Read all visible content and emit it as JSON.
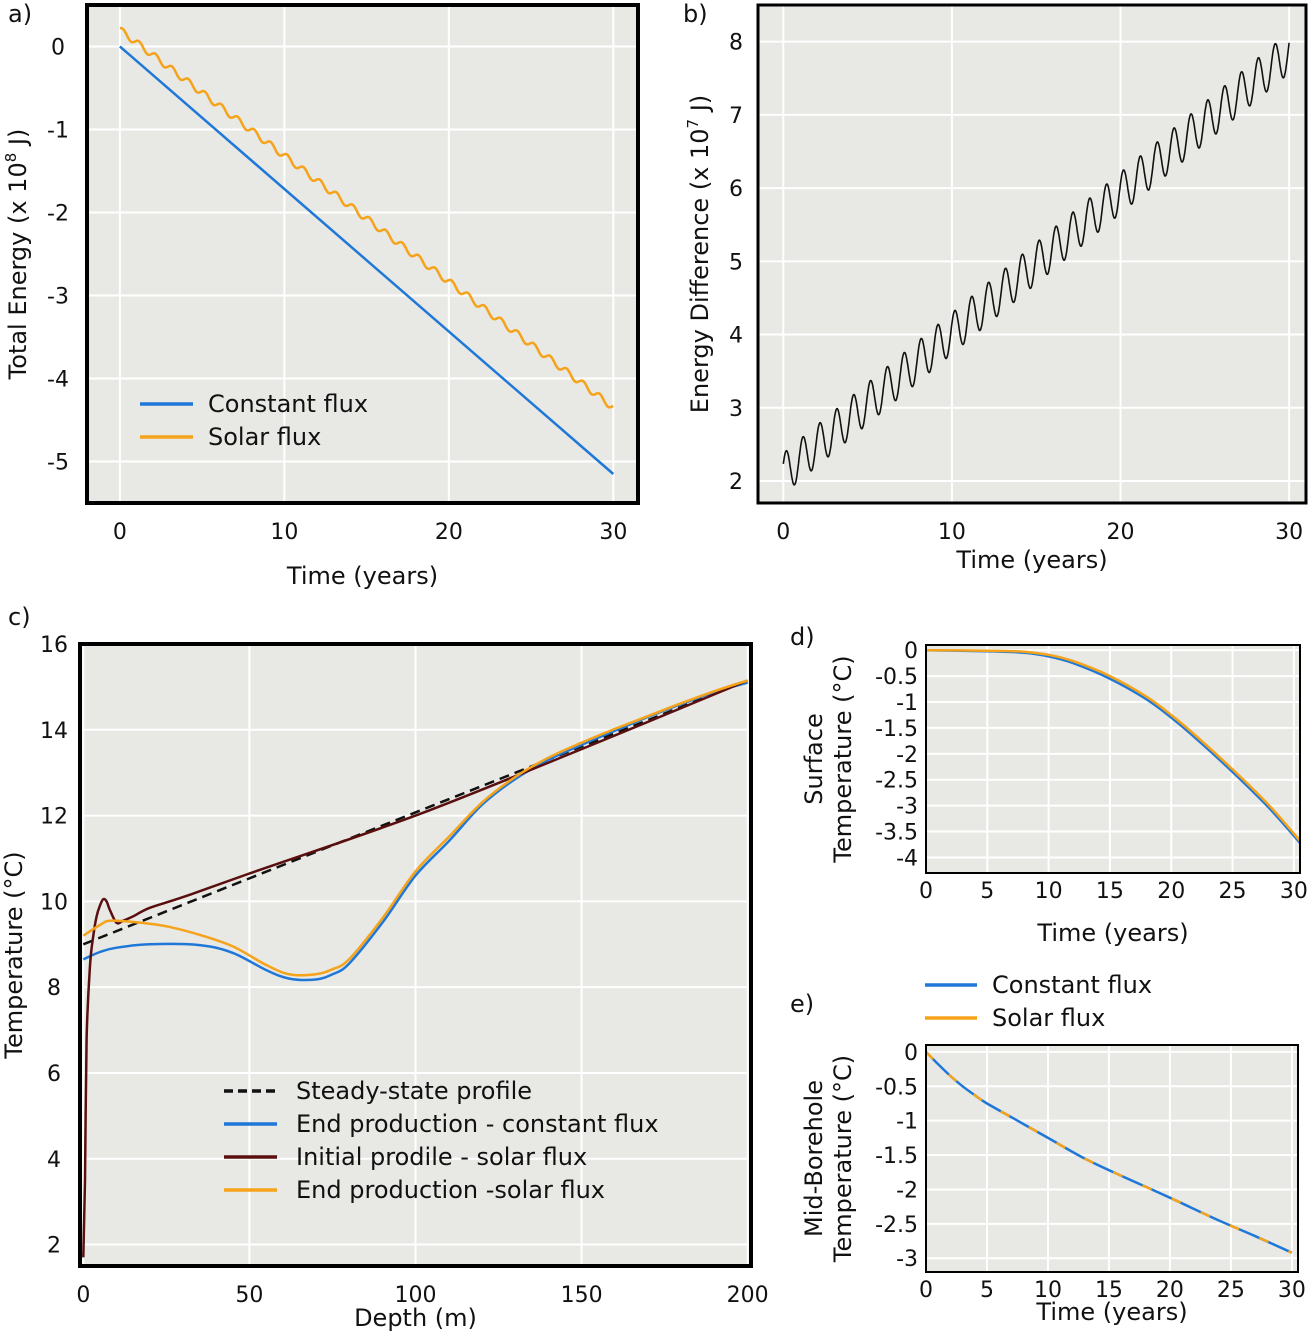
{
  "chart_data": [
    {
      "panel": "a)",
      "type": "line",
      "xlabel": "Time (years)",
      "ylabel_parts": [
        "Total Energy (x 10",
        "8",
        " J)"
      ],
      "xlim": [
        -2,
        31.5
      ],
      "ylim": [
        -5.5,
        0.5
      ],
      "xticks": [
        "0",
        "10",
        "20",
        "30"
      ],
      "yticks": [
        "0",
        "-1",
        "-2",
        "-3",
        "-4",
        "-5"
      ],
      "grid": true,
      "legend_position": "bottom-left",
      "series": [
        {
          "name": "Constant flux",
          "color": "#1f78d8",
          "x": [
            0,
            30
          ],
          "y": [
            0,
            -5.15
          ]
        },
        {
          "name": "Solar flux",
          "color": "#f5a31a",
          "x_start": 0,
          "x_end": 30,
          "y_start": 0.2,
          "y_end": -4.35,
          "oscillation_amplitude": 0.04,
          "oscillation_period_years": 1
        }
      ]
    },
    {
      "panel": "b)",
      "type": "line",
      "xlabel": "Time (years)",
      "ylabel_parts": [
        "Energy Difference (x 10",
        "7",
        " J)"
      ],
      "xlim": [
        -1.5,
        31
      ],
      "ylim": [
        1.7,
        8.5
      ],
      "xticks": [
        "0",
        "10",
        "20",
        "30"
      ],
      "yticks": [
        "2",
        "3",
        "4",
        "5",
        "6",
        "7",
        "8"
      ],
      "grid": true,
      "series": [
        {
          "name": "",
          "color": "#111111",
          "x_start": 0,
          "x_end": 30,
          "y_start": 2.1,
          "y_end": 7.85,
          "oscillation_amplitude": 0.28,
          "oscillation_period_years": 1
        }
      ]
    },
    {
      "panel": "c)",
      "type": "line",
      "xlabel": "Depth (m)",
      "ylabel": "Temperature (°C)",
      "xlim": [
        -1,
        201
      ],
      "ylim": [
        1.5,
        16
      ],
      "xticks": [
        "0",
        "50",
        "100",
        "150",
        "200"
      ],
      "yticks": [
        "2",
        "4",
        "6",
        "8",
        "10",
        "12",
        "14",
        "16"
      ],
      "grid": true,
      "legend_position": "bottom-center",
      "series": [
        {
          "name": "Steady-state profile",
          "color": "#111111",
          "dashed": true,
          "x": [
            0,
            200
          ],
          "y": [
            9.0,
            15.15
          ]
        },
        {
          "name": "End production - constant flux",
          "color": "#1f78d8",
          "x": [
            0,
            5,
            10,
            20,
            35,
            45,
            55,
            62,
            70,
            75,
            80,
            90,
            100,
            110,
            120,
            130,
            140,
            150,
            160,
            170,
            180,
            190,
            200
          ],
          "y": [
            8.65,
            8.82,
            8.92,
            9.0,
            8.98,
            8.8,
            8.4,
            8.2,
            8.18,
            8.3,
            8.55,
            9.5,
            10.6,
            11.4,
            12.25,
            12.85,
            13.3,
            13.65,
            13.98,
            14.3,
            14.6,
            14.88,
            15.1
          ]
        },
        {
          "name": "Initial prodile - solar flux",
          "color": "#5a0f0f",
          "x": [
            0,
            0.5,
            1,
            2,
            3,
            4,
            5,
            6,
            7,
            8,
            10,
            12,
            15,
            20,
            30,
            50,
            100,
            150,
            200
          ],
          "y": [
            1.7,
            3.5,
            6.8,
            8.5,
            9.2,
            9.65,
            9.9,
            10.05,
            10.0,
            9.8,
            9.5,
            9.55,
            9.65,
            9.85,
            10.1,
            10.65,
            12.0,
            13.55,
            15.15
          ]
        },
        {
          "name": "End production -solar flux",
          "color": "#f5a31a",
          "x": [
            0,
            5,
            8,
            15,
            25,
            35,
            45,
            55,
            62,
            70,
            75,
            80,
            90,
            100,
            110,
            120,
            130,
            140,
            150,
            160,
            170,
            180,
            190,
            200
          ],
          "y": [
            9.2,
            9.45,
            9.55,
            9.52,
            9.42,
            9.22,
            8.95,
            8.52,
            8.3,
            8.3,
            8.42,
            8.65,
            9.6,
            10.7,
            11.5,
            12.3,
            12.9,
            13.35,
            13.7,
            14.02,
            14.32,
            14.62,
            14.9,
            15.15
          ]
        }
      ]
    },
    {
      "panel": "d)",
      "type": "line",
      "xlabel": "Time (years)",
      "ylabel_lines": [
        "Surface",
        "Temperature (°C)"
      ],
      "xlim": [
        0,
        30.5
      ],
      "ylim": [
        -4.3,
        0.1
      ],
      "xticks": [
        "0",
        "5",
        "10",
        "15",
        "20",
        "25",
        "30"
      ],
      "yticks": [
        "0",
        "-0.5",
        "-1",
        "-1.5",
        "-2",
        "-2.5",
        "-3",
        "-3.5",
        "-4"
      ],
      "grid": true,
      "series": [
        {
          "name": "Constant flux",
          "color": "#1f78d8",
          "x": [
            0,
            5,
            8,
            10,
            12,
            15,
            18,
            20,
            22,
            25,
            28,
            30.5
          ],
          "y": [
            0,
            -0.02,
            -0.05,
            -0.12,
            -0.25,
            -0.55,
            -0.95,
            -1.3,
            -1.7,
            -2.35,
            -3.05,
            -3.72
          ]
        },
        {
          "name": "Solar flux",
          "color": "#f5a31a",
          "x": [
            0,
            5,
            8,
            10,
            12,
            15,
            18,
            20,
            22,
            25,
            28,
            30.5
          ],
          "y": [
            0,
            -0.01,
            -0.03,
            -0.09,
            -0.21,
            -0.5,
            -0.9,
            -1.25,
            -1.65,
            -2.3,
            -3.0,
            -3.68
          ]
        }
      ]
    },
    {
      "panel": "e)",
      "type": "line",
      "xlabel": "Time (years)",
      "ylabel_lines": [
        "Mid-Borehole",
        "Temperature (°C)"
      ],
      "xlim": [
        0,
        30.5
      ],
      "ylim": [
        -3.2,
        0.1
      ],
      "xticks": [
        "0",
        "5",
        "10",
        "15",
        "20",
        "25",
        "30"
      ],
      "yticks": [
        "0",
        "-0.5",
        "-1",
        "-1.5",
        "-2",
        "-2.5",
        "-3"
      ],
      "grid": true,
      "series": [
        {
          "name": "Constant flux",
          "color": "#1f78d8",
          "x": [
            0,
            1,
            2,
            3,
            4,
            5,
            7,
            10,
            13,
            16,
            20,
            24,
            27,
            30
          ],
          "y": [
            0,
            -0.18,
            -0.35,
            -0.5,
            -0.63,
            -0.75,
            -0.95,
            -1.25,
            -1.55,
            -1.8,
            -2.12,
            -2.45,
            -2.68,
            -2.92
          ]
        },
        {
          "name": "Solar flux",
          "color": "#f5a31a",
          "dashed": true,
          "x": [
            0,
            1,
            2,
            3,
            4,
            5,
            7,
            10,
            13,
            16,
            20,
            24,
            27,
            30
          ],
          "y": [
            0,
            -0.18,
            -0.35,
            -0.5,
            -0.63,
            -0.75,
            -0.95,
            -1.25,
            -1.55,
            -1.8,
            -2.12,
            -2.45,
            -2.68,
            -2.92
          ]
        }
      ]
    }
  ],
  "shared_legend_de": [
    {
      "name": "Constant flux",
      "color": "#1f78d8"
    },
    {
      "name": "Solar flux",
      "color": "#f5a31a"
    }
  ],
  "colors": {
    "plot_background": "#e8e8e5",
    "grid": "#ffffff",
    "frame": "#000000"
  }
}
